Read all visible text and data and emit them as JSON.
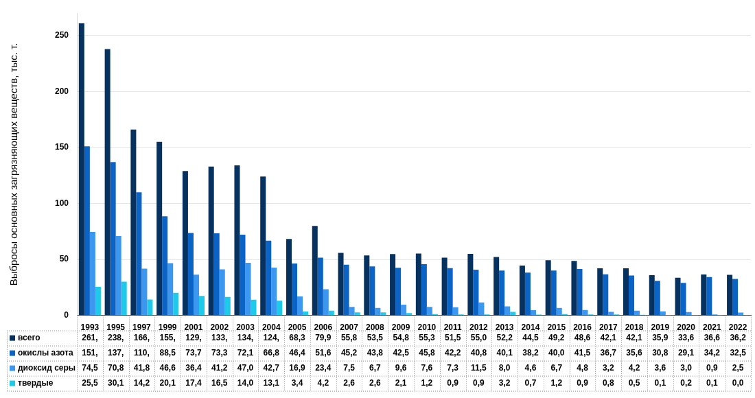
{
  "chart_data": {
    "type": "bar",
    "ylabel": "Выбросы основных загрязняющих веществ, тыс. т.",
    "categories": [
      "1993",
      "1995",
      "1997",
      "1999",
      "2001",
      "2002",
      "2003",
      "2004",
      "2005",
      "2006",
      "2007",
      "2008",
      "2009",
      "2010",
      "2011",
      "2012",
      "2013",
      "2014",
      "2015",
      "2016",
      "2017",
      "2018",
      "2019",
      "2020",
      "2021",
      "2022"
    ],
    "series": [
      {
        "name": "всего",
        "color": "#07325f",
        "values": [
          261,
          238,
          166,
          155,
          129,
          133,
          134,
          124,
          68.3,
          79.9,
          55.8,
          53.5,
          54.8,
          55.3,
          51.5,
          55.0,
          52.2,
          44.5,
          49.2,
          48.6,
          42.1,
          42.1,
          35.9,
          33.6,
          36.6,
          36.2
        ],
        "value_labels": [
          "261,",
          "238,",
          "166,",
          "155,",
          "129,",
          "133,",
          "134,",
          "124,",
          "68,3",
          "79,9",
          "55,8",
          "53,5",
          "54,8",
          "55,3",
          "51,5",
          "55,0",
          "52,2",
          "44,5",
          "49,2",
          "48,6",
          "42,1",
          "42,1",
          "35,9",
          "33,6",
          "36,6",
          "36,2"
        ]
      },
      {
        "name": "окислы азота",
        "color": "#0b63c6",
        "values": [
          151,
          137,
          110,
          88.5,
          73.7,
          73.3,
          72.1,
          66.8,
          46.4,
          51.6,
          45.2,
          43.8,
          42.5,
          45.8,
          42.2,
          40.8,
          40.1,
          38.2,
          40.0,
          41.5,
          36.7,
          35.6,
          30.8,
          29.1,
          34.2,
          32.5
        ],
        "value_labels": [
          "151,",
          "137,",
          "110,",
          "88,5",
          "73,7",
          "73,3",
          "72,1",
          "66,8",
          "46,4",
          "51,6",
          "45,2",
          "43,8",
          "42,5",
          "45,8",
          "42,2",
          "40,8",
          "40,1",
          "38,2",
          "40,0",
          "41,5",
          "36,7",
          "35,6",
          "30,8",
          "29,1",
          "34,2",
          "32,5"
        ]
      },
      {
        "name": "диоксид серы",
        "color": "#3c97f0",
        "values": [
          74.5,
          70.8,
          41.8,
          46.6,
          36.4,
          41.2,
          47.0,
          42.7,
          16.9,
          23.4,
          7.5,
          6.7,
          9.6,
          7.6,
          7.3,
          11.5,
          8.0,
          4.6,
          6.7,
          4.8,
          3.2,
          4.2,
          3.6,
          3.0,
          0.9,
          2.5
        ],
        "value_labels": [
          "74,5",
          "70,8",
          "41,8",
          "46,6",
          "36,4",
          "41,2",
          "47,0",
          "42,7",
          "16,9",
          "23,4",
          "7,5",
          "6,7",
          "9,6",
          "7,6",
          "7,3",
          "11,5",
          "8,0",
          "4,6",
          "6,7",
          "4,8",
          "3,2",
          "4,2",
          "3,6",
          "3,0",
          "0,9",
          "2,5"
        ]
      },
      {
        "name": "твердые",
        "color": "#1ecaea",
        "values": [
          25.5,
          30.1,
          14.2,
          20.1,
          17.4,
          16.5,
          14.0,
          13.1,
          3.4,
          4.2,
          2.6,
          2.6,
          2.1,
          1.2,
          0.9,
          0.9,
          3.2,
          0.7,
          1.2,
          0.9,
          0.8,
          0.5,
          0.1,
          0.2,
          0.1,
          0.0
        ],
        "value_labels": [
          "25,5",
          "30,1",
          "14,2",
          "20,1",
          "17,4",
          "16,5",
          "14,0",
          "13,1",
          "3,4",
          "4,2",
          "2,6",
          "2,6",
          "2,1",
          "1,2",
          "0,9",
          "0,9",
          "3,2",
          "0,7",
          "1,2",
          "0,9",
          "0,8",
          "0,5",
          "0,1",
          "0,2",
          "0,1",
          "0,0"
        ]
      }
    ],
    "ylim": [
      0,
      270
    ],
    "yticks": [
      0,
      50,
      100,
      150,
      200,
      250
    ],
    "grid": "y",
    "legend": "bottom left"
  }
}
